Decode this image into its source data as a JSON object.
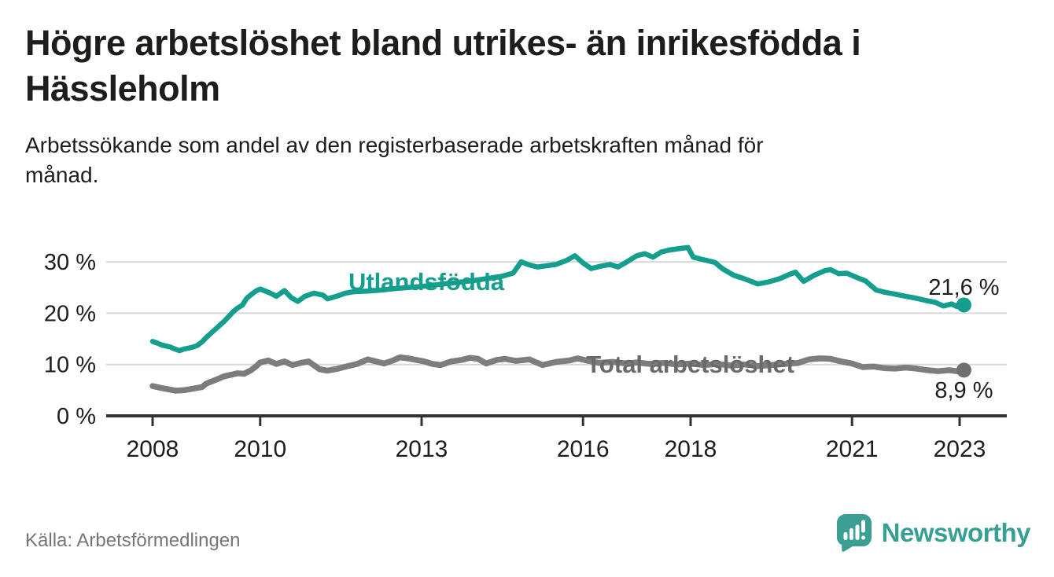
{
  "header": {
    "title": "Högre arbetslöshet bland utrikes- än inrikesfödda i Hässleholm",
    "subtitle": "Arbetssökande som andel av den registerbaserade arbetskraften månad för månad."
  },
  "footer": {
    "source": "Källa: Arbetsförmedlingen",
    "brand": "Newsworthy"
  },
  "colors": {
    "accent_teal": "#149e8d",
    "series_total_gray": "#7d7d7d",
    "total_dot_gray": "#6f6f6f",
    "total_label_gray": "#6a6a6a",
    "logo_teal": "#3aa093",
    "text_dark": "#1d1d1b",
    "axis": "#333333",
    "grid": "#d8d8d8",
    "muted": "#767676"
  },
  "chart_data": {
    "type": "line",
    "title": "Högre arbetslöshet bland utrikes- än inrikesfödda i Hässleholm",
    "xlabel": "",
    "ylabel": "Arbetssökande som andel av den registerbaserade arbetskraften",
    "grid": "horizontal",
    "legend_position": "inline-labels",
    "x_axis": {
      "ticks": [
        2008,
        2010,
        2013,
        2016,
        2018,
        2021,
        2023
      ],
      "range": [
        2007.1,
        2023.9
      ]
    },
    "y_axis": {
      "ticks": [
        0,
        10,
        20,
        30
      ],
      "suffix": " %",
      "range": [
        0,
        34
      ]
    },
    "series": [
      {
        "name": "Utlandsfödda",
        "color": "#149e8d",
        "dot_color": "#149e8d",
        "width": 6.5,
        "end_value": 21.6,
        "end_label": "21,6 %",
        "end_label_below": false,
        "points": [
          [
            2008.0,
            14.5
          ],
          [
            2008.08,
            14.2
          ],
          [
            2008.17,
            13.8
          ],
          [
            2008.25,
            13.6
          ],
          [
            2008.33,
            13.4
          ],
          [
            2008.42,
            13.0
          ],
          [
            2008.5,
            12.7
          ],
          [
            2008.58,
            13.0
          ],
          [
            2008.67,
            13.2
          ],
          [
            2008.75,
            13.4
          ],
          [
            2008.83,
            13.7
          ],
          [
            2008.92,
            14.4
          ],
          [
            2009.0,
            15.3
          ],
          [
            2009.17,
            16.9
          ],
          [
            2009.33,
            18.4
          ],
          [
            2009.5,
            20.3
          ],
          [
            2009.58,
            21.0
          ],
          [
            2009.67,
            21.6
          ],
          [
            2009.75,
            22.9
          ],
          [
            2009.83,
            23.6
          ],
          [
            2009.92,
            24.3
          ],
          [
            2010.0,
            24.7
          ],
          [
            2010.17,
            24.0
          ],
          [
            2010.3,
            23.3
          ],
          [
            2010.45,
            24.4
          ],
          [
            2010.58,
            23.0
          ],
          [
            2010.7,
            22.3
          ],
          [
            2010.83,
            23.3
          ],
          [
            2011.0,
            23.9
          ],
          [
            2011.17,
            23.5
          ],
          [
            2011.25,
            22.8
          ],
          [
            2011.42,
            23.3
          ],
          [
            2011.58,
            23.9
          ],
          [
            2011.75,
            24.2
          ],
          [
            2012.0,
            24.3
          ],
          [
            2012.25,
            24.5
          ],
          [
            2012.5,
            24.8
          ],
          [
            2012.75,
            25.0
          ],
          [
            2013.0,
            25.2
          ],
          [
            2013.25,
            25.5
          ],
          [
            2013.5,
            25.8
          ],
          [
            2013.75,
            26.1
          ],
          [
            2014.0,
            26.4
          ],
          [
            2014.25,
            26.8
          ],
          [
            2014.5,
            27.2
          ],
          [
            2014.7,
            27.8
          ],
          [
            2014.85,
            30.0
          ],
          [
            2015.0,
            29.4
          ],
          [
            2015.15,
            29.0
          ],
          [
            2015.3,
            29.2
          ],
          [
            2015.5,
            29.5
          ],
          [
            2015.7,
            30.3
          ],
          [
            2015.85,
            31.2
          ],
          [
            2016.0,
            29.8
          ],
          [
            2016.15,
            28.7
          ],
          [
            2016.35,
            29.2
          ],
          [
            2016.5,
            29.5
          ],
          [
            2016.65,
            29.0
          ],
          [
            2016.8,
            29.9
          ],
          [
            2017.0,
            31.2
          ],
          [
            2017.15,
            31.6
          ],
          [
            2017.3,
            30.9
          ],
          [
            2017.45,
            31.9
          ],
          [
            2017.6,
            32.3
          ],
          [
            2017.8,
            32.6
          ],
          [
            2017.95,
            32.8
          ],
          [
            2018.05,
            30.9
          ],
          [
            2018.25,
            30.4
          ],
          [
            2018.45,
            29.9
          ],
          [
            2018.6,
            28.6
          ],
          [
            2018.8,
            27.4
          ],
          [
            2019.0,
            26.7
          ],
          [
            2019.25,
            25.7
          ],
          [
            2019.45,
            26.1
          ],
          [
            2019.65,
            26.7
          ],
          [
            2019.85,
            27.6
          ],
          [
            2019.95,
            28.0
          ],
          [
            2020.1,
            26.2
          ],
          [
            2020.3,
            27.4
          ],
          [
            2020.5,
            28.3
          ],
          [
            2020.6,
            28.5
          ],
          [
            2020.75,
            27.7
          ],
          [
            2020.9,
            27.8
          ],
          [
            2021.1,
            26.9
          ],
          [
            2021.25,
            26.3
          ],
          [
            2021.45,
            24.5
          ],
          [
            2021.6,
            24.1
          ],
          [
            2021.8,
            23.7
          ],
          [
            2022.0,
            23.3
          ],
          [
            2022.2,
            22.9
          ],
          [
            2022.4,
            22.4
          ],
          [
            2022.55,
            22.1
          ],
          [
            2022.7,
            21.4
          ],
          [
            2022.85,
            21.8
          ],
          [
            2022.95,
            21.3
          ],
          [
            2023.02,
            22.4
          ],
          [
            2023.08,
            21.6
          ]
        ]
      },
      {
        "name": "Total arbetslöshet",
        "color": "#7d7d7d",
        "dot_color": "#6f6f6f",
        "width": 7.5,
        "end_value": 8.9,
        "end_label": "8,9 %",
        "end_label_below": true,
        "points": [
          [
            2008.0,
            5.8
          ],
          [
            2008.17,
            5.4
          ],
          [
            2008.33,
            5.1
          ],
          [
            2008.42,
            4.9
          ],
          [
            2008.58,
            5.0
          ],
          [
            2008.75,
            5.3
          ],
          [
            2008.92,
            5.6
          ],
          [
            2009.0,
            6.3
          ],
          [
            2009.17,
            7.0
          ],
          [
            2009.33,
            7.7
          ],
          [
            2009.5,
            8.1
          ],
          [
            2009.58,
            8.3
          ],
          [
            2009.7,
            8.2
          ],
          [
            2009.83,
            8.9
          ],
          [
            2009.92,
            9.6
          ],
          [
            2010.0,
            10.4
          ],
          [
            2010.15,
            10.8
          ],
          [
            2010.3,
            10.1
          ],
          [
            2010.45,
            10.6
          ],
          [
            2010.6,
            9.9
          ],
          [
            2010.75,
            10.3
          ],
          [
            2010.9,
            10.6
          ],
          [
            2011.1,
            9.1
          ],
          [
            2011.25,
            8.8
          ],
          [
            2011.45,
            9.2
          ],
          [
            2011.6,
            9.6
          ],
          [
            2011.8,
            10.1
          ],
          [
            2012.0,
            11.0
          ],
          [
            2012.15,
            10.6
          ],
          [
            2012.3,
            10.2
          ],
          [
            2012.45,
            10.7
          ],
          [
            2012.6,
            11.4
          ],
          [
            2012.75,
            11.2
          ],
          [
            2012.9,
            10.9
          ],
          [
            2013.05,
            10.6
          ],
          [
            2013.2,
            10.1
          ],
          [
            2013.35,
            9.9
          ],
          [
            2013.55,
            10.6
          ],
          [
            2013.75,
            10.9
          ],
          [
            2013.9,
            11.3
          ],
          [
            2014.05,
            11.1
          ],
          [
            2014.2,
            10.2
          ],
          [
            2014.4,
            10.9
          ],
          [
            2014.55,
            11.1
          ],
          [
            2014.75,
            10.7
          ],
          [
            2015.0,
            11.0
          ],
          [
            2015.25,
            9.9
          ],
          [
            2015.5,
            10.5
          ],
          [
            2015.75,
            10.8
          ],
          [
            2015.9,
            11.2
          ],
          [
            2016.1,
            10.7
          ],
          [
            2016.3,
            10.3
          ],
          [
            2016.55,
            10.5
          ],
          [
            2016.8,
            10.2
          ],
          [
            2017.0,
            10.4
          ],
          [
            2017.25,
            10.1
          ],
          [
            2017.5,
            10.3
          ],
          [
            2017.75,
            10.0
          ],
          [
            2018.0,
            10.2
          ],
          [
            2018.25,
            9.9
          ],
          [
            2018.5,
            10.1
          ],
          [
            2018.75,
            9.8
          ],
          [
            2019.0,
            10.0
          ],
          [
            2019.25,
            9.7
          ],
          [
            2019.5,
            9.9
          ],
          [
            2019.75,
            10.1
          ],
          [
            2020.0,
            10.3
          ],
          [
            2020.2,
            11.0
          ],
          [
            2020.4,
            11.2
          ],
          [
            2020.6,
            11.1
          ],
          [
            2020.8,
            10.6
          ],
          [
            2021.0,
            10.2
          ],
          [
            2021.2,
            9.5
          ],
          [
            2021.4,
            9.6
          ],
          [
            2021.6,
            9.3
          ],
          [
            2021.8,
            9.2
          ],
          [
            2022.0,
            9.4
          ],
          [
            2022.2,
            9.2
          ],
          [
            2022.4,
            8.9
          ],
          [
            2022.6,
            8.7
          ],
          [
            2022.8,
            8.9
          ],
          [
            2022.95,
            8.7
          ],
          [
            2023.08,
            8.9
          ]
        ]
      }
    ],
    "annotations": [
      {
        "text": "Utlandsfödda",
        "x": 2011.64,
        "y": 24.5,
        "color": "#149e8d"
      },
      {
        "text": "Total arbetslöshet",
        "x": 2016.06,
        "y": 8.42,
        "color": "#6a6a6a"
      }
    ]
  }
}
